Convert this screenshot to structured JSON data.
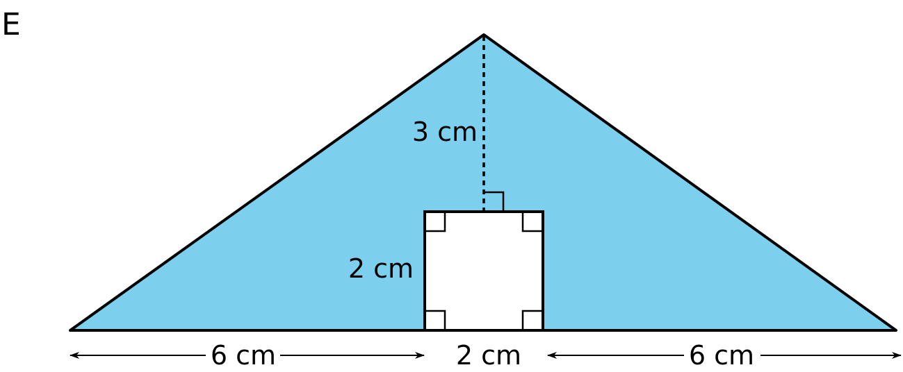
{
  "panel_label": "E",
  "colors": {
    "fill": "#7dcfee",
    "stroke": "#000000",
    "hole": "#ffffff"
  },
  "labels": {
    "height": "3 cm",
    "square_side": "2 cm",
    "base_left": "6 cm",
    "base_middle": "2 cm",
    "base_right": "6 cm"
  }
}
